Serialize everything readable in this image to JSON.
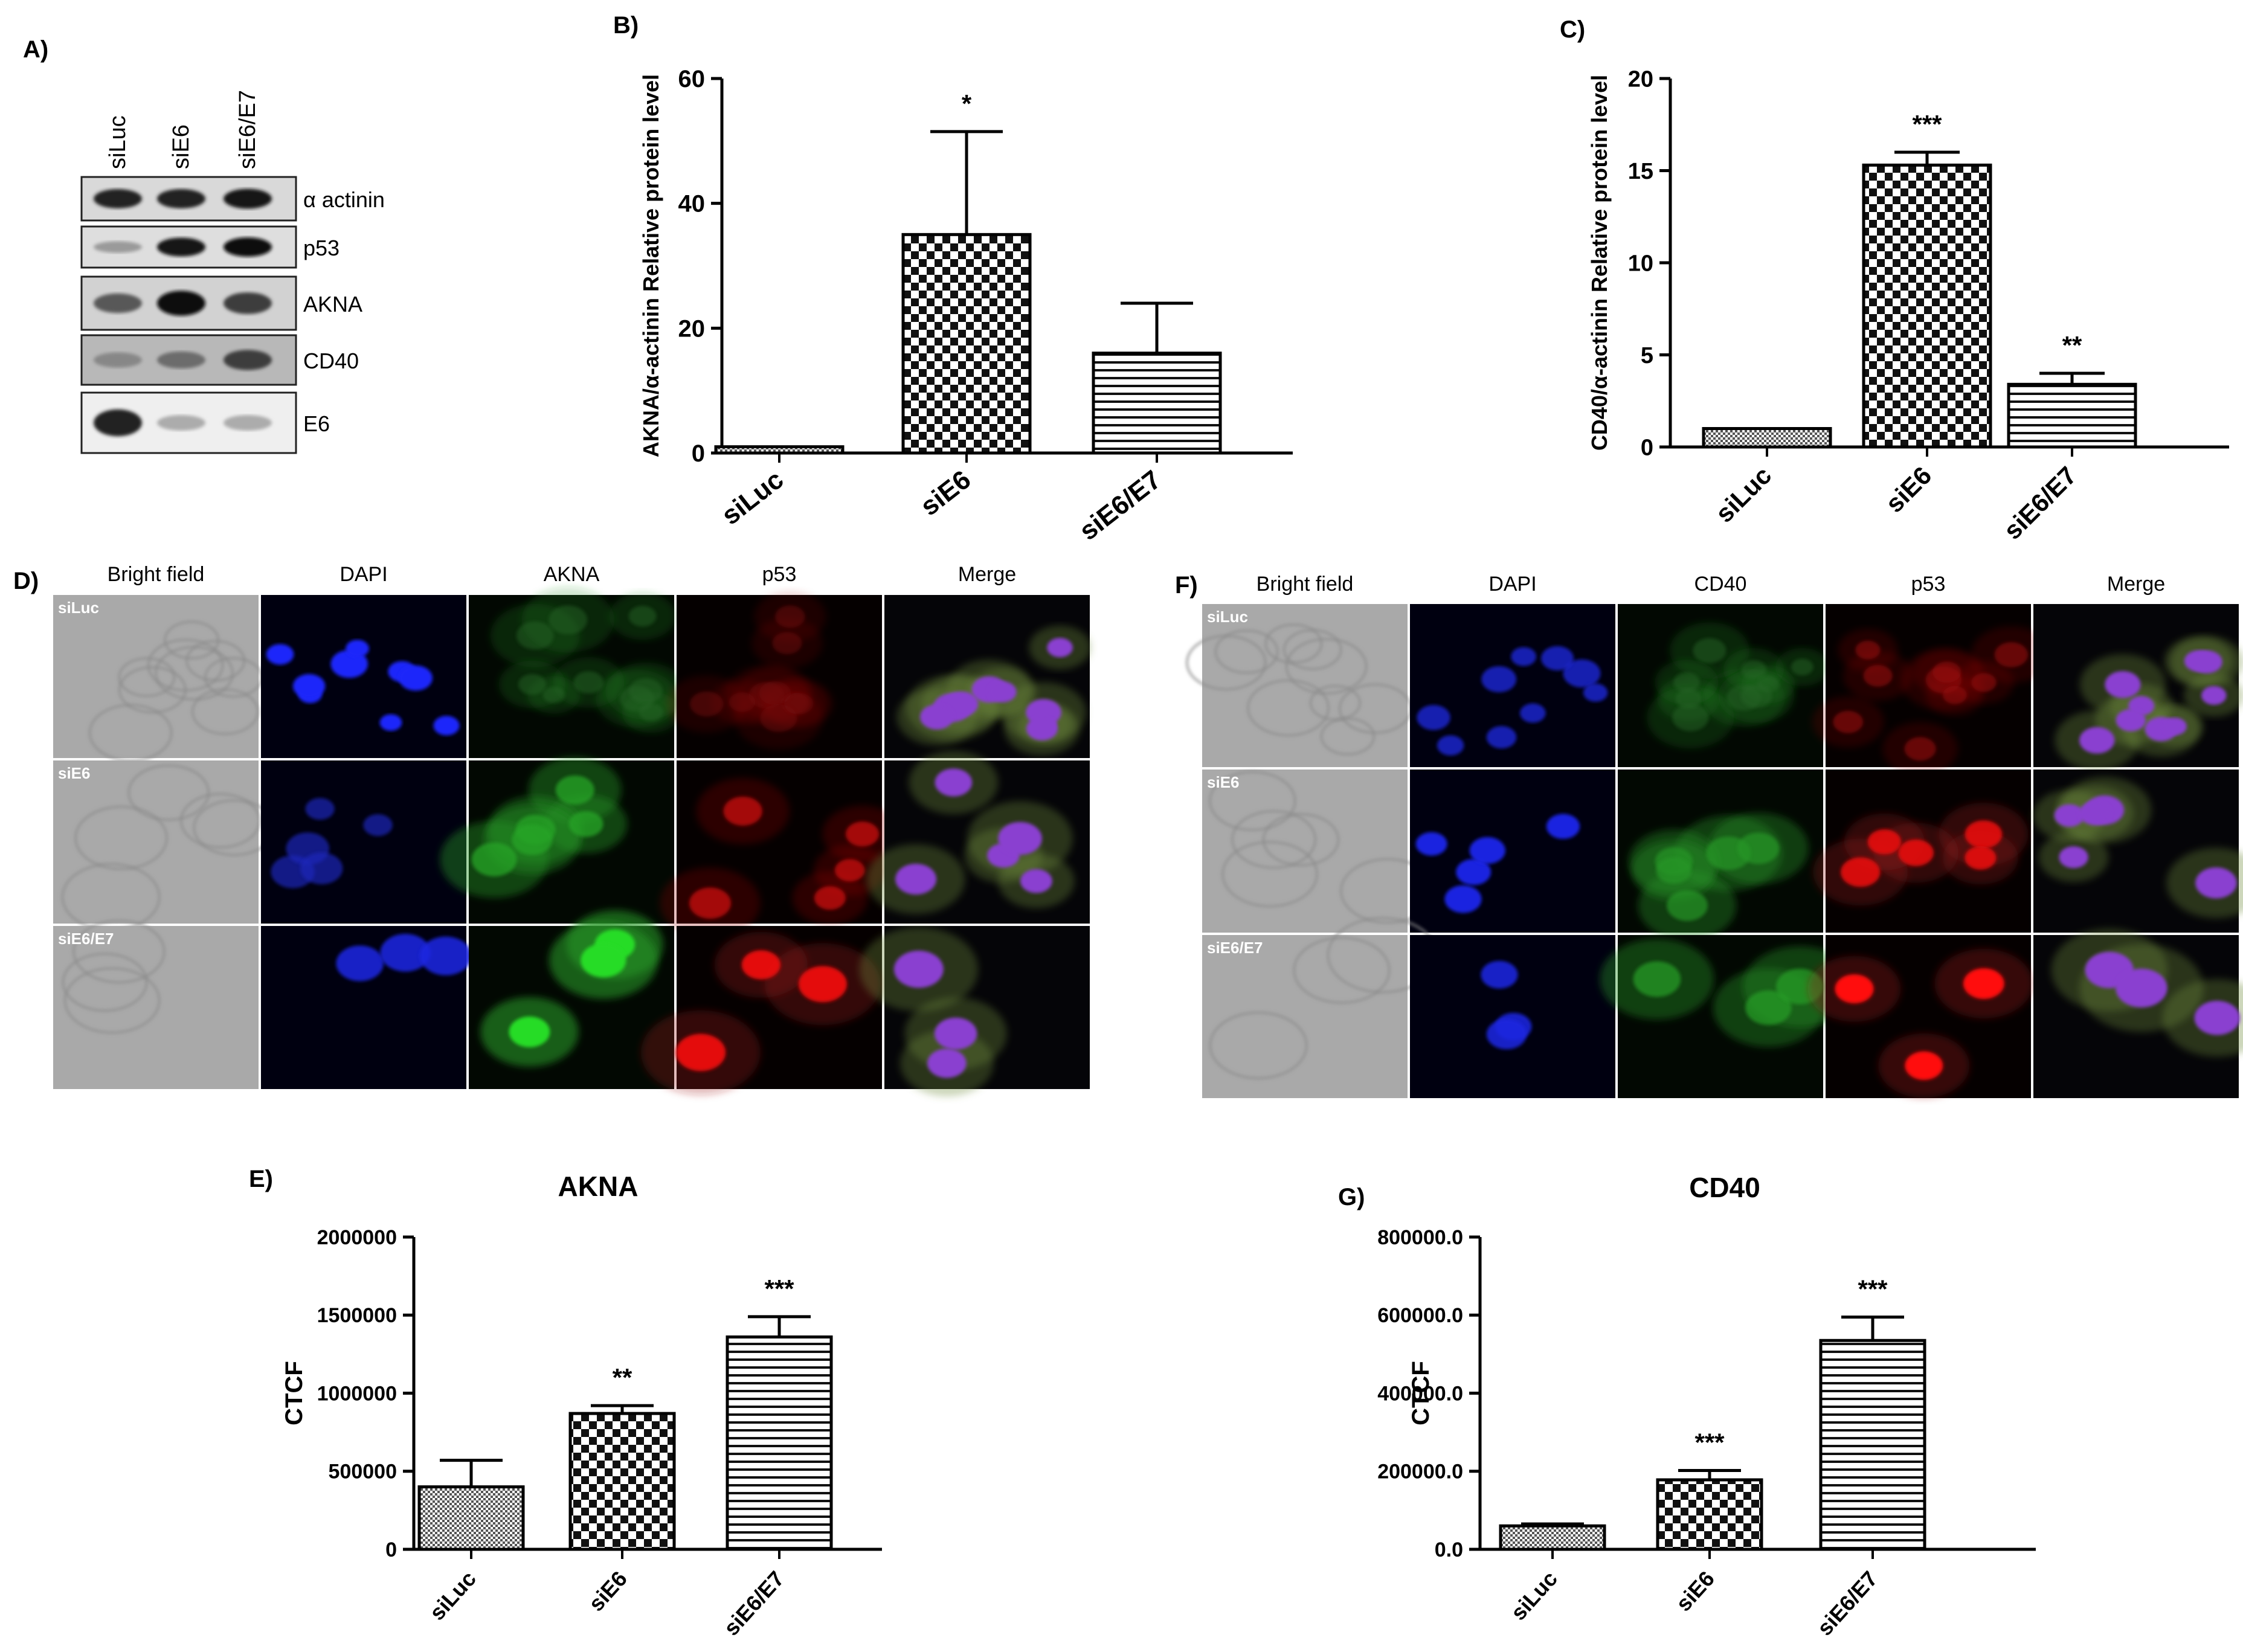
{
  "panel_labels": {
    "A": "A)",
    "B": "B)",
    "C": "C)",
    "D": "D)",
    "E": "E)",
    "F": "F)",
    "G": "G)"
  },
  "western_blot": {
    "lanes": [
      "siLuc",
      "siE6",
      "siE6/E7"
    ],
    "rows": [
      {
        "label": "α actinin",
        "intensities": [
          0.9,
          0.9,
          0.95
        ],
        "bg": "#d9d9d9"
      },
      {
        "label": "p53",
        "intensities": [
          0.25,
          0.95,
          1.0
        ],
        "bg": "#dedede"
      },
      {
        "label": "AKNA",
        "intensities": [
          0.6,
          1.0,
          0.75
        ],
        "bg": "#d2d2d2"
      },
      {
        "label": "CD40",
        "intensities": [
          0.35,
          0.5,
          0.75
        ],
        "bg": "#b8b8b8"
      },
      {
        "label": "E6",
        "intensities": [
          0.9,
          0.15,
          0.15
        ],
        "bg": "#efefef"
      }
    ]
  },
  "micrographs_D": {
    "columns": [
      "Bright field",
      "DAPI",
      "AKNA",
      "p53",
      "Merge"
    ],
    "rows": [
      "siLuc",
      "siE6",
      "siE6/E7"
    ],
    "levels": [
      [
        1,
        1.0,
        0.15,
        0.15,
        1
      ],
      [
        1,
        0.5,
        0.6,
        0.65,
        1
      ],
      [
        1,
        0.8,
        1.0,
        0.9,
        1
      ]
    ]
  },
  "micrographs_F": {
    "columns": [
      "Bright field",
      "DAPI",
      "CD40",
      "p53",
      "Merge"
    ],
    "rows": [
      "siLuc",
      "siE6",
      "siE6/E7"
    ],
    "levels": [
      [
        1,
        0.7,
        0.15,
        0.35,
        1
      ],
      [
        1,
        0.9,
        0.5,
        0.85,
        1
      ],
      [
        1,
        0.8,
        0.55,
        1.0,
        1
      ]
    ]
  },
  "chart_data": [
    {
      "id": "B",
      "type": "bar",
      "categories": [
        "siLuc",
        "siE6",
        "siE6/E7"
      ],
      "values": [
        1,
        35,
        16
      ],
      "errors": [
        0,
        16.5,
        8
      ],
      "significance": [
        "",
        "*",
        ""
      ],
      "ylabel": "AKNA/α-actinin Relative protein level",
      "ylim": [
        0,
        60
      ],
      "yticks": [
        "0",
        "20",
        "40",
        "60"
      ],
      "patterns": [
        "fine",
        "checker",
        "hlines"
      ]
    },
    {
      "id": "C",
      "type": "bar",
      "categories": [
        "siLuc",
        "siE6",
        "siE6/E7"
      ],
      "values": [
        1,
        15.3,
        3.4
      ],
      "errors": [
        0,
        0.7,
        0.6
      ],
      "significance": [
        "",
        "***",
        "**"
      ],
      "ylabel": "CD40/α-actinin Relative protein level",
      "ylim": [
        0,
        20
      ],
      "yticks": [
        "0",
        "5",
        "10",
        "15",
        "20"
      ],
      "patterns": [
        "fine",
        "checker",
        "hlines"
      ]
    },
    {
      "id": "E",
      "type": "bar",
      "title": "AKNA",
      "categories": [
        "siLuc",
        "siE6",
        "siE6/E7"
      ],
      "values": [
        400000,
        870000,
        1360000
      ],
      "errors": [
        170000,
        50000,
        130000
      ],
      "significance": [
        "",
        "**",
        "***"
      ],
      "ylabel": "CTCF",
      "ylim": [
        0,
        2000000
      ],
      "yticks": [
        "0",
        "500000",
        "1000000",
        "1500000",
        "2000000"
      ],
      "patterns": [
        "fine",
        "checker",
        "hlines"
      ]
    },
    {
      "id": "G",
      "type": "bar",
      "title": "CD40",
      "categories": [
        "siLuc",
        "siE6",
        "siE6/E7"
      ],
      "values": [
        60000,
        178000,
        535000
      ],
      "errors": [
        5000,
        24000,
        60000
      ],
      "significance": [
        "",
        "***",
        "***"
      ],
      "ylabel": "CTCF",
      "ylim": [
        0,
        800000
      ],
      "yticks": [
        "0.0",
        "200000.0",
        "400000.0",
        "600000.0",
        "800000.0"
      ],
      "patterns": [
        "fine",
        "checker",
        "hlines"
      ]
    }
  ]
}
